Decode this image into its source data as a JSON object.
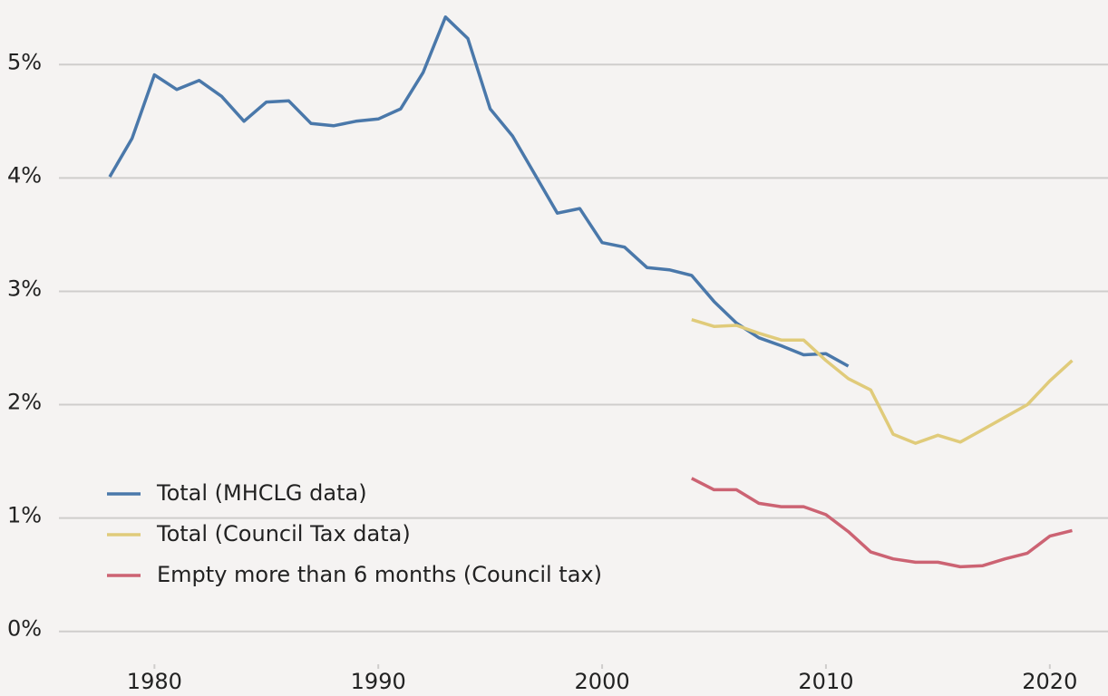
{
  "chart_data": {
    "type": "line",
    "x": [
      1978,
      1979,
      1980,
      1981,
      1982,
      1983,
      1984,
      1985,
      1986,
      1987,
      1988,
      1989,
      1990,
      1991,
      1992,
      1993,
      1994,
      1995,
      1996,
      1997,
      1998,
      1999,
      2000,
      2001,
      2002,
      2003,
      2004,
      2005,
      2006,
      2007,
      2008,
      2009,
      2010,
      2011,
      2012,
      2013,
      2014,
      2015,
      2016,
      2017,
      2018,
      2019,
      2020,
      2021
    ],
    "series": [
      {
        "name": "Total (MHCLG data)",
        "color": "#4a78aa",
        "values": [
          4.01,
          4.35,
          4.91,
          4.78,
          4.86,
          4.72,
          4.5,
          4.67,
          4.68,
          4.48,
          4.46,
          4.5,
          4.52,
          4.61,
          4.93,
          5.42,
          5.23,
          4.61,
          4.37,
          4.03,
          3.69,
          3.73,
          3.43,
          3.39,
          3.21,
          3.19,
          3.14,
          2.91,
          2.72,
          2.59,
          2.52,
          2.44,
          2.45,
          2.34,
          null,
          null,
          null,
          null,
          null,
          null,
          null,
          null,
          null,
          null
        ]
      },
      {
        "name": "Total (Council Tax data)",
        "color": "#e0cb7a",
        "values": [
          null,
          null,
          null,
          null,
          null,
          null,
          null,
          null,
          null,
          null,
          null,
          null,
          null,
          null,
          null,
          null,
          null,
          null,
          null,
          null,
          null,
          null,
          null,
          null,
          null,
          null,
          2.75,
          2.69,
          2.7,
          2.63,
          2.57,
          2.57,
          2.39,
          2.23,
          2.13,
          1.74,
          1.66,
          1.73,
          1.67,
          1.78,
          1.89,
          2.0,
          2.21,
          2.39
        ]
      },
      {
        "name": "Empty more than 6 months (Council tax)",
        "color": "#cc6373",
        "values": [
          null,
          null,
          null,
          null,
          null,
          null,
          null,
          null,
          null,
          null,
          null,
          null,
          null,
          null,
          null,
          null,
          null,
          null,
          null,
          null,
          null,
          null,
          null,
          null,
          null,
          null,
          1.35,
          1.25,
          1.25,
          1.13,
          1.1,
          1.1,
          1.03,
          0.88,
          0.7,
          0.64,
          0.61,
          0.61,
          0.57,
          0.58,
          0.64,
          0.69,
          0.84,
          0.89
        ]
      }
    ],
    "xlim": [
      1973.1,
      2022.6
    ],
    "xticks": [
      1980,
      1990,
      2000,
      2010,
      2020
    ],
    "ylim": [
      -0.57,
      5.57
    ],
    "yticks": [
      {
        "value": 0,
        "label": "0%"
      },
      {
        "value": 1,
        "label": "1%"
      },
      {
        "value": 2,
        "label": "2%"
      },
      {
        "value": 3,
        "label": "3%"
      },
      {
        "value": 4,
        "label": "4%"
      },
      {
        "value": 5,
        "label": "5%"
      }
    ],
    "grid": true,
    "legend": "lower left"
  }
}
